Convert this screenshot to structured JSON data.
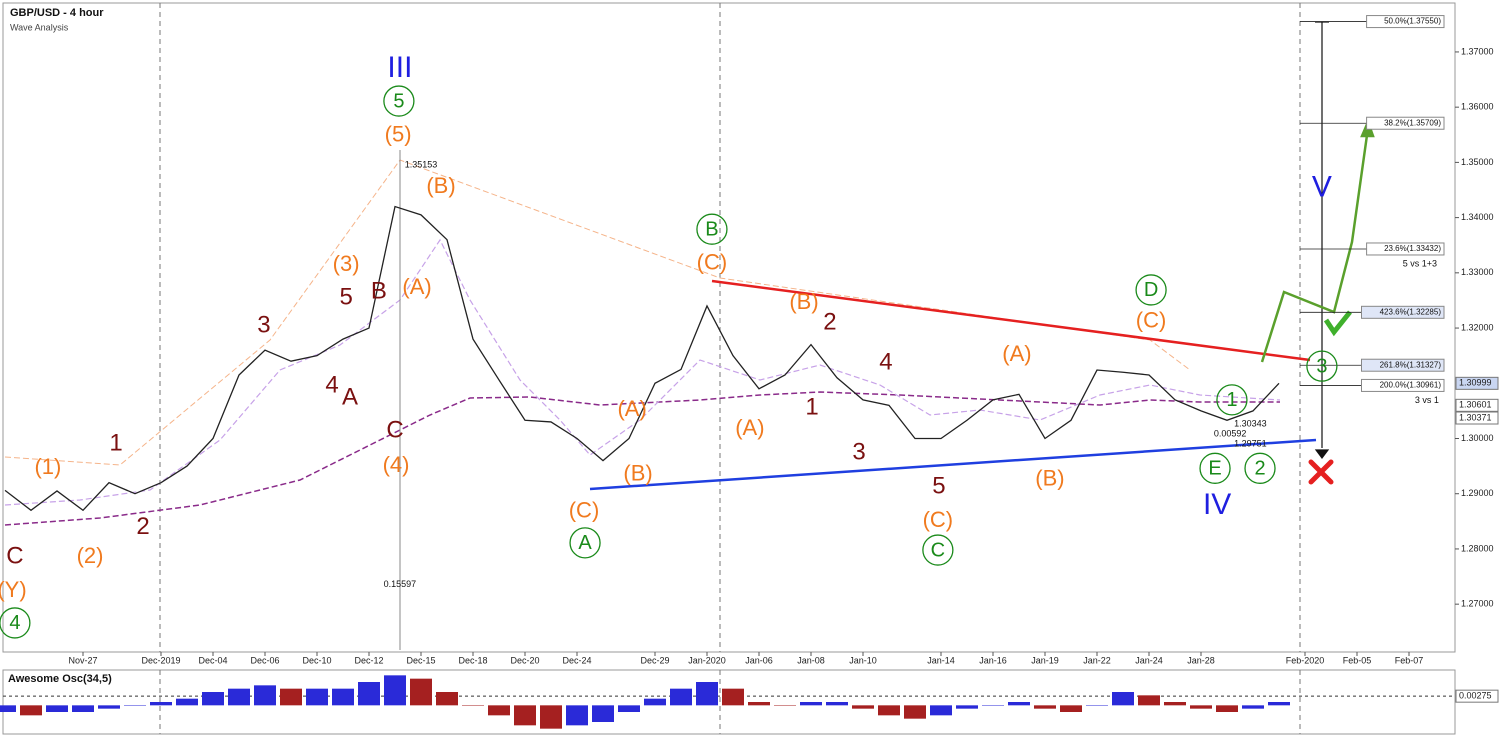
{
  "chart_data": [
    {
      "type": "line",
      "title": "GBP/USD - 4 hour",
      "subtitle": "Wave Analysis",
      "color": "#222222",
      "categories": [
        null,
        null,
        null,
        "Nov-27",
        null,
        null,
        "Dec-2019",
        null,
        "Dec-04",
        null,
        "Dec-06",
        null,
        "Dec-10",
        null,
        "Dec-12",
        null,
        "Dec-15",
        null,
        "Dec-18",
        null,
        "Dec-20",
        null,
        "Dec-24",
        null,
        null,
        "Dec-29",
        null,
        "Jan-2020",
        null,
        "Jan-06",
        null,
        "Jan-08",
        null,
        "Jan-10",
        null,
        null,
        "Jan-14",
        null,
        "Jan-16",
        null,
        "Jan-19",
        null,
        "Jan-22",
        null,
        "Jan-24",
        null,
        "Jan-28",
        null,
        null,
        null,
        "Feb-2020",
        null,
        "Feb-05",
        null,
        "Feb-07",
        null
      ],
      "values": [
        1.2906,
        1.287,
        1.2905,
        1.287,
        1.292,
        1.29,
        1.292,
        1.295,
        1.3,
        1.3115,
        1.316,
        1.314,
        1.315,
        1.318,
        1.32,
        1.342,
        1.3405,
        1.336,
        1.318,
        1.3106,
        1.3033,
        1.303,
        1.3,
        1.296,
        1.3,
        1.31,
        1.3125,
        1.324,
        1.315,
        1.309,
        1.3115,
        1.317,
        1.311,
        1.307,
        1.306,
        1.3,
        1.3,
        1.3033,
        1.307,
        1.308,
        1.3,
        1.3033,
        1.3124,
        1.312,
        1.3115,
        1.307,
        1.305,
        1.3033,
        1.305,
        1.31,
        null,
        null,
        null,
        null,
        null,
        null
      ],
      "ylim": [
        1.2617,
        1.3785
      ],
      "yticks": [
        {
          "value": 1.27,
          "label": "1.27000"
        },
        {
          "value": 1.28,
          "label": "1.28000"
        },
        {
          "value": 1.29,
          "label": "1.29000"
        },
        {
          "value": 1.3,
          "label": "1.30000"
        },
        {
          "value": 1.32,
          "label": "1.32000"
        },
        {
          "value": 1.33,
          "label": "1.33000"
        },
        {
          "value": 1.34,
          "label": "1.34000"
        },
        {
          "value": 1.35,
          "label": "1.35000"
        },
        {
          "value": 1.36,
          "label": "1.36000"
        },
        {
          "value": 1.37,
          "label": "1.37000"
        }
      ],
      "fib_levels": [
        {
          "value": 1.3755,
          "label": "50.0%(1.37550)"
        },
        {
          "value": 1.35709,
          "label": "38.2%(1.35709)"
        },
        {
          "value": 1.33432,
          "label": "23.6%(1.33432)"
        },
        {
          "value": 1.32285,
          "label": "423.6%(1.32285)"
        },
        {
          "value": 1.31327,
          "label": "261.8%(1.31327)"
        },
        {
          "value": 1.30961,
          "label": "200.0%(1.30961)"
        }
      ],
      "price_markers": [
        {
          "value": 1.30999,
          "label": "1.30999"
        },
        {
          "value": 1.30601,
          "label": "1.30601"
        },
        {
          "value": 1.30371,
          "label": "1.30371"
        }
      ],
      "annotations": [
        {
          "color": "#1f1fe0",
          "circled": false,
          "labels": [
            {
              "text": "III",
              "x": 15.19,
              "y": 1.3671
            },
            {
              "text": "V",
              "x": 50.65,
              "y": 1.3454
            },
            {
              "text": "IV",
              "x": 46.62,
              "y": 1.2879
            }
          ]
        },
        {
          "color": "#1a8a1a",
          "circled": true,
          "labels": [
            {
              "text": "5",
              "x": 15.15,
              "y": 1.3611
            },
            {
              "text": "B",
              "x": 27.19,
              "y": 1.3379
            },
            {
              "text": "D",
              "x": 44.08,
              "y": 1.3269
            },
            {
              "text": "A",
              "x": 22.31,
              "y": 1.2811
            },
            {
              "text": "C",
              "x": 35.88,
              "y": 1.2798
            },
            {
              "text": "4",
              "x": 0.38,
              "y": 1.2666
            },
            {
              "text": "3",
              "x": 50.65,
              "y": 1.3131
            },
            {
              "text": "1",
              "x": 47.19,
              "y": 1.307
            },
            {
              "text": "E",
              "x": 46.54,
              "y": 1.2946
            },
            {
              "text": "2",
              "x": 48.27,
              "y": 1.2946
            }
          ]
        },
        {
          "color": "#f07a1e",
          "circled": false,
          "labels": [
            {
              "text": "(5)",
              "x": 15.12,
              "y": 1.355
            },
            {
              "text": "(B)",
              "x": 16.77,
              "y": 1.3457
            },
            {
              "text": "(3)",
              "x": 13.12,
              "y": 1.3316
            },
            {
              "text": "(A)",
              "x": 15.85,
              "y": 1.3274
            },
            {
              "text": "(4)",
              "x": 15.04,
              "y": 1.2952
            },
            {
              "text": "(1)",
              "x": 1.65,
              "y": 1.2948
            },
            {
              "text": "(2)",
              "x": 3.27,
              "y": 1.2787
            },
            {
              "text": "(C)",
              "x": 22.27,
              "y": 1.2869
            },
            {
              "text": "(Y)",
              "x": 0.27,
              "y": 1.2725
            },
            {
              "text": "(C)",
              "x": 27.19,
              "y": 1.3318
            },
            {
              "text": "(B)",
              "x": 30.73,
              "y": 1.3247
            },
            {
              "text": "(A)",
              "x": 24.12,
              "y": 1.3053
            },
            {
              "text": "(B)",
              "x": 24.35,
              "y": 1.2936
            },
            {
              "text": "(A)",
              "x": 28.65,
              "y": 1.3019
            },
            {
              "text": "(C)",
              "x": 35.88,
              "y": 1.2852
            },
            {
              "text": "(A)",
              "x": 38.92,
              "y": 1.3153
            },
            {
              "text": "(B)",
              "x": 40.19,
              "y": 1.2927
            },
            {
              "text": "(C)",
              "x": 44.08,
              "y": 1.3213
            }
          ]
        },
        {
          "color": "#7a1010",
          "circled": false,
          "labels": [
            {
              "text": "3",
              "x": 9.96,
              "y": 1.3205
            },
            {
              "text": "5",
              "x": 13.12,
              "y": 1.3256
            },
            {
              "text": "B",
              "x": 14.38,
              "y": 1.3267
            },
            {
              "text": "4",
              "x": 12.58,
              "y": 1.3097
            },
            {
              "text": "A",
              "x": 13.27,
              "y": 1.3075
            },
            {
              "text": "C",
              "x": 15.0,
              "y": 1.3015
            },
            {
              "text": "1",
              "x": 4.27,
              "y": 1.2992
            },
            {
              "text": "2",
              "x": 5.31,
              "y": 1.284
            },
            {
              "text": "C",
              "x": 0.38,
              "y": 1.2787
            },
            {
              "text": "2",
              "x": 31.73,
              "y": 1.3211
            },
            {
              "text": "1",
              "x": 31.04,
              "y": 1.3057
            },
            {
              "text": "4",
              "x": 33.88,
              "y": 1.3138
            },
            {
              "text": "3",
              "x": 32.85,
              "y": 1.2975
            },
            {
              "text": "5",
              "x": 35.92,
              "y": 1.2914
            }
          ]
        },
        {
          "color": "#111111",
          "circled": false,
          "labels": [
            {
              "text": "5 vs 1+3",
              "x": 54.42,
              "y": 1.3318
            },
            {
              "text": "3 vs 1",
              "x": 54.69,
              "y": 1.307
            },
            {
              "text": "1.35153",
              "x": 16.0,
              "y": 1.3497
            },
            {
              "text": "0.15597",
              "x": 15.19,
              "y": 1.2737
            },
            {
              "text": "1.30343",
              "x": 47.9,
              "y": 1.3028
            },
            {
              "text": "0.00592",
              "x": 47.12,
              "y": 1.301
            },
            {
              "text": "1.29751",
              "x": 47.9,
              "y": 1.2992
            }
          ]
        }
      ]
    },
    {
      "type": "bar",
      "title": "Awesome Osc(34,5)",
      "colors": {
        "up": "#2a2ad8",
        "down": "#a52020"
      },
      "values": [
        -0.002,
        -0.003,
        -0.002,
        -0.002,
        -0.001,
        0,
        0.001,
        0.002,
        0.004,
        0.005,
        0.006,
        0.005,
        0.005,
        0.005,
        0.007,
        0.009,
        0.008,
        0.004,
        0,
        -0.003,
        -0.006,
        -0.007,
        -0.006,
        -0.005,
        -0.002,
        0.002,
        0.005,
        0.007,
        0.005,
        0.001,
        0,
        0.001,
        0.001,
        -0.001,
        -0.003,
        -0.004,
        -0.003,
        -0.001,
        0,
        0.001,
        -0.001,
        -0.002,
        0,
        0.004,
        0.003,
        0.001,
        -0.001,
        -0.002,
        -0.001,
        0.001,
        null,
        null,
        null,
        null,
        null,
        null
      ],
      "ylim": [
        -0.008,
        0.01
      ],
      "yticks": [
        {
          "value": 0.00275,
          "label": "0.00275"
        }
      ]
    }
  ]
}
